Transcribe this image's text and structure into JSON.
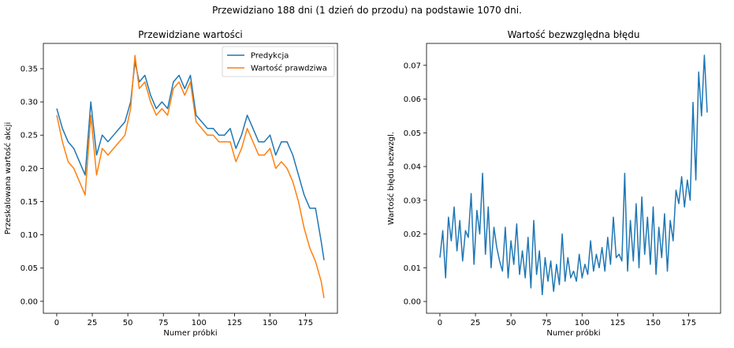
{
  "suptitle": "Przewidziano 188 dni (1 dzień do przodu) na podstawie 1070 dni.",
  "chart_data": [
    {
      "type": "line",
      "title": "Przewidziane wartości",
      "xlabel": "Numer próbki",
      "ylabel": "Przeskalowana wartość akcji",
      "xlim": [
        -9.4,
        197.4
      ],
      "ylim": [
        -0.018,
        0.388
      ],
      "xticks": [
        0,
        25,
        50,
        75,
        100,
        125,
        150,
        175
      ],
      "yticks": [
        0.0,
        0.05,
        0.1,
        0.15,
        0.2,
        0.25,
        0.3,
        0.35
      ],
      "ytick_labels": [
        "0.00",
        "0.05",
        "0.10",
        "0.15",
        "0.20",
        "0.25",
        "0.30",
        "0.35"
      ],
      "grid": false,
      "legend": "top-right",
      "x": [
        0,
        4,
        8,
        12,
        16,
        20,
        24,
        28,
        32,
        36,
        40,
        44,
        48,
        52,
        55,
        58,
        62,
        66,
        70,
        74,
        78,
        82,
        86,
        90,
        94,
        98,
        102,
        106,
        110,
        114,
        118,
        122,
        126,
        130,
        134,
        138,
        142,
        146,
        150,
        154,
        158,
        162,
        166,
        170,
        174,
        178,
        182,
        186,
        188
      ],
      "series": [
        {
          "name": "Predykcja",
          "color": "#1f77b4",
          "values": [
            0.29,
            0.26,
            0.24,
            0.23,
            0.21,
            0.19,
            0.3,
            0.22,
            0.25,
            0.24,
            0.25,
            0.26,
            0.27,
            0.3,
            0.36,
            0.33,
            0.34,
            0.31,
            0.29,
            0.3,
            0.29,
            0.33,
            0.34,
            0.32,
            0.34,
            0.28,
            0.27,
            0.26,
            0.26,
            0.25,
            0.25,
            0.26,
            0.23,
            0.25,
            0.28,
            0.26,
            0.24,
            0.24,
            0.25,
            0.22,
            0.24,
            0.24,
            0.22,
            0.19,
            0.16,
            0.14,
            0.14,
            0.09,
            0.062
          ]
        },
        {
          "name": "Wartość prawdziwa",
          "color": "#ff7f0e",
          "values": [
            0.28,
            0.24,
            0.21,
            0.2,
            0.18,
            0.16,
            0.28,
            0.19,
            0.23,
            0.22,
            0.23,
            0.24,
            0.25,
            0.29,
            0.37,
            0.32,
            0.33,
            0.3,
            0.28,
            0.29,
            0.28,
            0.32,
            0.33,
            0.31,
            0.33,
            0.27,
            0.26,
            0.25,
            0.25,
            0.24,
            0.24,
            0.24,
            0.21,
            0.23,
            0.26,
            0.24,
            0.22,
            0.22,
            0.23,
            0.2,
            0.21,
            0.2,
            0.18,
            0.15,
            0.11,
            0.08,
            0.06,
            0.03,
            0.005
          ]
        }
      ]
    },
    {
      "type": "line",
      "title": "Wartość bezwzględna błędu",
      "xlabel": "Numer próbki",
      "ylabel": "Wartość błędu bezwzgl.",
      "xlim": [
        -9.4,
        197.4
      ],
      "ylim": [
        -0.0035,
        0.0765
      ],
      "xticks": [
        0,
        25,
        50,
        75,
        100,
        125,
        150,
        175
      ],
      "yticks": [
        0.0,
        0.01,
        0.02,
        0.03,
        0.04,
        0.05,
        0.06,
        0.07
      ],
      "ytick_labels": [
        "0.00",
        "0.01",
        "0.02",
        "0.03",
        "0.04",
        "0.05",
        "0.06",
        "0.07"
      ],
      "grid": false,
      "x": [
        0,
        2,
        4,
        6,
        8,
        10,
        12,
        14,
        16,
        18,
        20,
        22,
        24,
        26,
        28,
        30,
        32,
        34,
        36,
        38,
        40,
        42,
        44,
        46,
        48,
        50,
        52,
        54,
        56,
        58,
        60,
        62,
        64,
        66,
        68,
        70,
        72,
        74,
        76,
        78,
        80,
        82,
        84,
        86,
        88,
        90,
        92,
        94,
        96,
        98,
        100,
        102,
        104,
        106,
        108,
        110,
        112,
        114,
        116,
        118,
        120,
        122,
        124,
        126,
        128,
        130,
        132,
        134,
        136,
        138,
        140,
        142,
        144,
        146,
        148,
        150,
        152,
        154,
        156,
        158,
        160,
        162,
        164,
        166,
        168,
        170,
        172,
        174,
        176,
        178,
        180,
        182,
        184,
        186,
        188
      ],
      "series": [
        {
          "name": "",
          "color": "#1f77b4",
          "values": [
            0.013,
            0.021,
            0.007,
            0.025,
            0.018,
            0.028,
            0.015,
            0.024,
            0.012,
            0.021,
            0.019,
            0.032,
            0.011,
            0.027,
            0.02,
            0.038,
            0.014,
            0.028,
            0.01,
            0.022,
            0.016,
            0.012,
            0.009,
            0.022,
            0.007,
            0.018,
            0.011,
            0.023,
            0.008,
            0.015,
            0.007,
            0.019,
            0.004,
            0.024,
            0.008,
            0.015,
            0.002,
            0.013,
            0.006,
            0.012,
            0.003,
            0.011,
            0.005,
            0.02,
            0.006,
            0.013,
            0.007,
            0.009,
            0.006,
            0.014,
            0.007,
            0.011,
            0.008,
            0.018,
            0.009,
            0.014,
            0.01,
            0.016,
            0.009,
            0.019,
            0.011,
            0.025,
            0.013,
            0.014,
            0.012,
            0.038,
            0.009,
            0.024,
            0.012,
            0.029,
            0.01,
            0.031,
            0.014,
            0.025,
            0.011,
            0.028,
            0.008,
            0.022,
            0.013,
            0.026,
            0.009,
            0.024,
            0.018,
            0.033,
            0.029,
            0.037,
            0.028,
            0.036,
            0.03,
            0.059,
            0.036,
            0.068,
            0.055,
            0.073,
            0.056
          ]
        }
      ]
    }
  ]
}
